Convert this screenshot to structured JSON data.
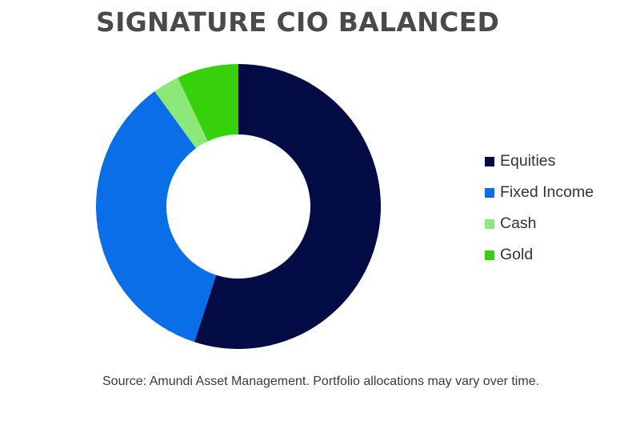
{
  "chart_data": {
    "type": "pie",
    "variant": "donut",
    "title": "SIGNATURE CIO BALANCED",
    "categories": [
      "Equities",
      "Fixed Income",
      "Cash",
      "Gold"
    ],
    "values": [
      55,
      35,
      3,
      7
    ],
    "unit": "%",
    "colors": [
      "#020b44",
      "#0a6ee6",
      "#8de87a",
      "#36d10a"
    ],
    "legend_position": "right",
    "source": "Source: Amundi Asset Management. Portfolio allocations may vary over time."
  }
}
